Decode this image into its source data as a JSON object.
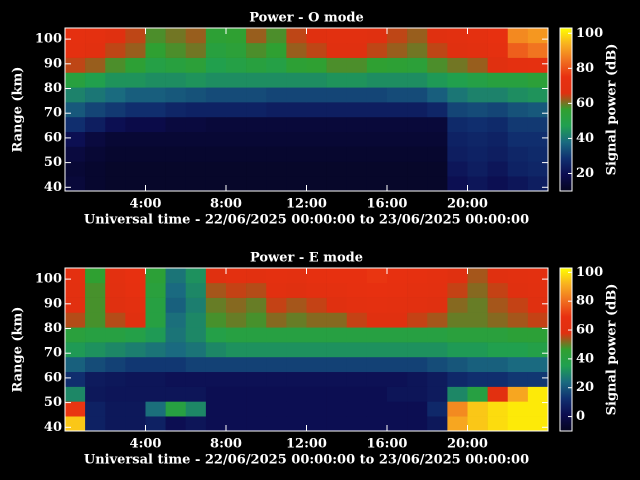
{
  "chart_data": [
    {
      "type": "heatmap",
      "title": "Power - O mode",
      "xlabel": "Universal time - 22/06/2025 00:00:00 to 23/06/2025 00:00:00",
      "ylabel": "Range (km)",
      "colorbar_label": "Signal power (dB)",
      "x_edges": [
        0,
        1,
        2,
        3,
        4,
        5,
        6,
        7,
        8,
        9,
        10,
        11,
        12,
        13,
        14,
        15,
        16,
        17,
        18,
        19,
        20,
        21,
        22,
        23,
        24
      ],
      "y_edges": [
        38.5,
        44.5,
        50.5,
        56.5,
        62.5,
        68.5,
        74.5,
        80.5,
        86.5,
        92.5,
        98.5,
        104.5
      ],
      "xlim": [
        0,
        24
      ],
      "ylim": [
        38.5,
        104.5
      ],
      "xticks": [
        {
          "value": 4,
          "label": "4:00"
        },
        {
          "value": 8,
          "label": "8:00"
        },
        {
          "value": 12,
          "label": "12:00"
        },
        {
          "value": 16,
          "label": "16:00"
        },
        {
          "value": 20,
          "label": "20:00"
        }
      ],
      "yticks": [
        40,
        50,
        60,
        70,
        80,
        90,
        100
      ],
      "clim": [
        10,
        103
      ],
      "cticks": [
        20,
        40,
        60,
        80,
        100
      ],
      "colormap": [
        "#050520",
        "#0c0c50",
        "#103070",
        "#1a6a80",
        "#20a050",
        "#30a030",
        "#e03010",
        "#e83010",
        "#f07020",
        "#f8b020",
        "#ffff00"
      ],
      "z": [
        [
          15,
          13,
          12,
          12,
          12,
          12,
          12,
          12,
          12,
          12,
          12,
          12,
          12,
          12,
          12,
          12,
          12,
          12,
          12,
          20,
          22,
          20,
          22,
          24
        ],
        [
          14,
          13,
          12,
          12,
          12,
          12,
          12,
          12,
          12,
          12,
          12,
          12,
          12,
          12,
          12,
          12,
          12,
          12,
          12,
          22,
          24,
          22,
          25,
          26
        ],
        [
          16,
          14,
          13,
          13,
          13,
          13,
          13,
          13,
          13,
          13,
          13,
          13,
          13,
          13,
          13,
          13,
          13,
          13,
          13,
          24,
          25,
          24,
          26,
          27
        ],
        [
          20,
          16,
          14,
          14,
          14,
          14,
          14,
          14,
          14,
          14,
          14,
          14,
          14,
          14,
          14,
          14,
          14,
          14,
          14,
          25,
          26,
          25,
          28,
          28
        ],
        [
          28,
          24,
          20,
          18,
          18,
          16,
          16,
          15,
          15,
          15,
          15,
          15,
          15,
          15,
          15,
          15,
          15,
          15,
          15,
          27,
          28,
          27,
          30,
          30
        ],
        [
          35,
          32,
          30,
          28,
          28,
          26,
          25,
          25,
          25,
          25,
          24,
          24,
          24,
          24,
          24,
          24,
          24,
          24,
          26,
          32,
          33,
          32,
          34,
          35
        ],
        [
          42,
          40,
          38,
          36,
          36,
          35,
          34,
          33,
          33,
          33,
          32,
          32,
          32,
          32,
          32,
          32,
          33,
          33,
          36,
          40,
          42,
          42,
          44,
          45
        ],
        [
          52,
          48,
          45,
          45,
          44,
          44,
          45,
          44,
          44,
          44,
          44,
          44,
          44,
          45,
          45,
          44,
          44,
          44,
          46,
          48,
          50,
          52,
          52,
          54
        ],
        [
          64,
          62,
          58,
          55,
          50,
          52,
          54,
          48,
          50,
          52,
          50,
          55,
          56,
          58,
          58,
          56,
          55,
          54,
          58,
          60,
          62,
          66,
          70,
          72
        ],
        [
          70,
          68,
          64,
          62,
          56,
          58,
          60,
          52,
          54,
          58,
          56,
          62,
          64,
          66,
          66,
          64,
          62,
          60,
          64,
          66,
          68,
          72,
          82,
          85
        ],
        [
          72,
          70,
          66,
          64,
          58,
          60,
          62,
          55,
          56,
          62,
          58,
          64,
          66,
          68,
          68,
          66,
          64,
          62,
          66,
          68,
          70,
          74,
          88,
          90
        ]
      ]
    },
    {
      "type": "heatmap",
      "title": "Power - E mode",
      "xlabel": "Universal time - 22/06/2025 00:00:00 to 23/06/2025 00:00:00",
      "ylabel": "Range (km)",
      "colorbar_label": "Signal power (dB)",
      "x_edges": [
        0,
        1,
        2,
        3,
        4,
        5,
        6,
        7,
        8,
        9,
        10,
        11,
        12,
        13,
        14,
        15,
        16,
        17,
        18,
        19,
        20,
        21,
        22,
        23,
        24
      ],
      "y_edges": [
        38.5,
        44.5,
        50.5,
        56.5,
        62.5,
        68.5,
        74.5,
        80.5,
        86.5,
        92.5,
        98.5,
        104.5
      ],
      "xlim": [
        0,
        24
      ],
      "ylim": [
        38.5,
        104.5
      ],
      "xticks": [
        {
          "value": 4,
          "label": "4:00"
        },
        {
          "value": 8,
          "label": "8:00"
        },
        {
          "value": 12,
          "label": "12:00"
        },
        {
          "value": 16,
          "label": "16:00"
        },
        {
          "value": 20,
          "label": "20:00"
        }
      ],
      "yticks": [
        40,
        50,
        60,
        70,
        80,
        90,
        100
      ],
      "clim": [
        -10,
        103
      ],
      "cticks": [
        0,
        20,
        40,
        60,
        80,
        100
      ],
      "colormap": [
        "#050520",
        "#0c0c50",
        "#103070",
        "#1a6a80",
        "#20a050",
        "#30a030",
        "#e03010",
        "#e83010",
        "#f07020",
        "#f8b020",
        "#ffff00"
      ],
      "z": [
        [
          95,
          8,
          5,
          5,
          8,
          2,
          4,
          2,
          2,
          2,
          2,
          2,
          2,
          2,
          2,
          2,
          2,
          2,
          5,
          90,
          95,
          98,
          100,
          100
        ],
        [
          70,
          8,
          5,
          5,
          25,
          40,
          30,
          2,
          2,
          2,
          2,
          2,
          2,
          2,
          2,
          2,
          2,
          2,
          10,
          85,
          95,
          98,
          100,
          100
        ],
        [
          30,
          5,
          4,
          4,
          4,
          4,
          4,
          2,
          2,
          2,
          2,
          2,
          2,
          2,
          2,
          2,
          4,
          4,
          6,
          30,
          40,
          60,
          90,
          100
        ],
        [
          12,
          6,
          5,
          4,
          4,
          3,
          3,
          3,
          3,
          3,
          3,
          3,
          3,
          3,
          3,
          3,
          3,
          4,
          6,
          10,
          12,
          12,
          14,
          14
        ],
        [
          22,
          18,
          16,
          14,
          14,
          14,
          16,
          16,
          16,
          16,
          16,
          16,
          16,
          16,
          16,
          16,
          16,
          16,
          18,
          20,
          22,
          22,
          24,
          24
        ],
        [
          34,
          32,
          30,
          28,
          26,
          24,
          26,
          30,
          32,
          32,
          32,
          32,
          32,
          32,
          32,
          32,
          32,
          32,
          32,
          34,
          34,
          36,
          36,
          38
        ],
        [
          42,
          40,
          40,
          38,
          34,
          26,
          30,
          38,
          40,
          40,
          40,
          40,
          40,
          40,
          40,
          40,
          40,
          40,
          40,
          42,
          42,
          42,
          44,
          44
        ],
        [
          55,
          48,
          55,
          58,
          40,
          25,
          30,
          48,
          50,
          48,
          52,
          50,
          52,
          52,
          56,
          58,
          58,
          56,
          54,
          50,
          50,
          52,
          54,
          56
        ],
        [
          60,
          48,
          58,
          62,
          40,
          22,
          28,
          50,
          52,
          50,
          56,
          54,
          56,
          58,
          62,
          64,
          62,
          60,
          58,
          52,
          50,
          54,
          56,
          58
        ],
        [
          62,
          48,
          60,
          66,
          42,
          24,
          30,
          54,
          56,
          55,
          60,
          58,
          62,
          64,
          66,
          68,
          66,
          64,
          62,
          56,
          52,
          56,
          58,
          60
        ],
        [
          64,
          46,
          62,
          68,
          44,
          26,
          32,
          58,
          62,
          60,
          64,
          62,
          66,
          68,
          68,
          70,
          68,
          66,
          64,
          58,
          54,
          58,
          60,
          62
        ]
      ]
    }
  ]
}
